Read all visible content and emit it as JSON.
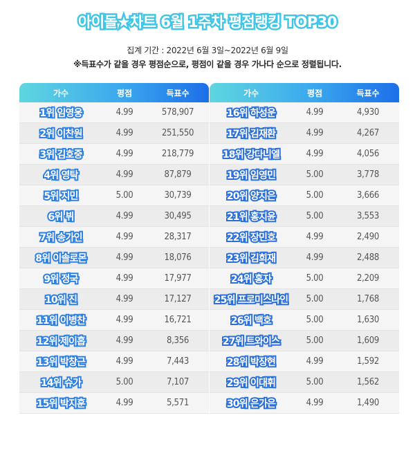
{
  "title": "아이돌★차트 6월 1주차 평점랭킹 TOP30",
  "period": "집계 기간 : 2022년 6월 3일~2022년 6월 9일",
  "note": "※득표수가 같을 경우 평점순으로, 평점이 같을 경우 가나다 순으로 정렬됩니다.",
  "headers": {
    "singer": "가수",
    "rating": "평점",
    "votes": "득표수"
  },
  "colors": {
    "accent": "#40c6e4",
    "header_start": "#5fd6e0",
    "header_end": "#1d6fe8",
    "name_outline": "#2d7fe0"
  },
  "left_rows": [
    {
      "name": "1위 임영웅",
      "rating": "4.99",
      "votes": "578,907"
    },
    {
      "name": "2위 이찬원",
      "rating": "4.99",
      "votes": "251,550"
    },
    {
      "name": "3위 김호중",
      "rating": "4.99",
      "votes": "218,779"
    },
    {
      "name": "4위 영탁",
      "rating": "4.99",
      "votes": "87,879"
    },
    {
      "name": "5위 지민",
      "rating": "5.00",
      "votes": "30,739"
    },
    {
      "name": "6위 뷔",
      "rating": "4.99",
      "votes": "30,495"
    },
    {
      "name": "7위 송가인",
      "rating": "4.99",
      "votes": "28,317"
    },
    {
      "name": "8위 이솔로몬",
      "rating": "4.99",
      "votes": "18,076"
    },
    {
      "name": "9위 정국",
      "rating": "4.99",
      "votes": "17,977"
    },
    {
      "name": "10위 진",
      "rating": "4.99",
      "votes": "17,127"
    },
    {
      "name": "11위 이병찬",
      "rating": "4.99",
      "votes": "16,721"
    },
    {
      "name": "12위 제이홉",
      "rating": "4.99",
      "votes": "8,356"
    },
    {
      "name": "13위 박창근",
      "rating": "4.99",
      "votes": "7,443"
    },
    {
      "name": "14위 슈가",
      "rating": "5.00",
      "votes": "7,107"
    },
    {
      "name": "15위 박지훈",
      "rating": "4.99",
      "votes": "5,571"
    }
  ],
  "right_rows": [
    {
      "name": "16위 하성운",
      "rating": "4.99",
      "votes": "4,930"
    },
    {
      "name": "17위 김재환",
      "rating": "4.99",
      "votes": "4,267"
    },
    {
      "name": "18위 강다니엘",
      "rating": "4.99",
      "votes": "4,056"
    },
    {
      "name": "19위 임영민",
      "rating": "5.00",
      "votes": "3,778"
    },
    {
      "name": "20위 양지은",
      "rating": "5.00",
      "votes": "3,666"
    },
    {
      "name": "21위 홍지윤",
      "rating": "5.00",
      "votes": "3,553"
    },
    {
      "name": "22위 장민호",
      "rating": "4.99",
      "votes": "2,490"
    },
    {
      "name": "23위 김희재",
      "rating": "4.99",
      "votes": "2,488"
    },
    {
      "name": "24위 홍자",
      "rating": "5.00",
      "votes": "2,209"
    },
    {
      "name": "25위 프로미스나인",
      "rating": "5.00",
      "votes": "1,768"
    },
    {
      "name": "26위 백호",
      "rating": "5.00",
      "votes": "1,630"
    },
    {
      "name": "27위 트와이스",
      "rating": "5.00",
      "votes": "1,609"
    },
    {
      "name": "28위 박장현",
      "rating": "4.99",
      "votes": "1,592"
    },
    {
      "name": "29위 이대휘",
      "rating": "5.00",
      "votes": "1,562"
    },
    {
      "name": "30위 은가은",
      "rating": "4.99",
      "votes": "1,490"
    }
  ]
}
